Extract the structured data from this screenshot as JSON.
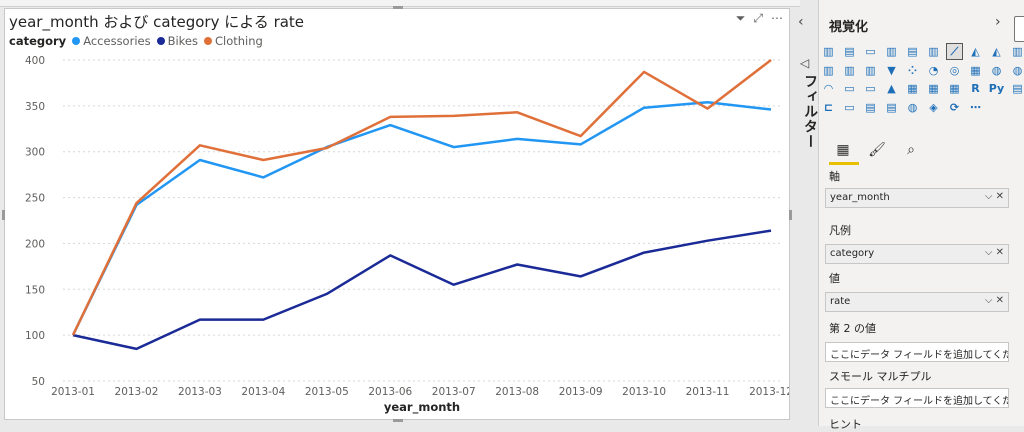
{
  "visual": {
    "title": "year_month および category による rate",
    "legend_title": "category",
    "legend_items": [
      {
        "label": "Accessories",
        "color": "#2196f3"
      },
      {
        "label": "Bikes",
        "color": "#1a2a96"
      },
      {
        "label": "Clothing",
        "color": "#e0703a"
      }
    ],
    "icons": [
      "filter-icon",
      "focus-mode-icon",
      "more-options-icon"
    ]
  },
  "chart_data": {
    "type": "line",
    "x": [
      "2013-01",
      "2013-02",
      "2013-03",
      "2013-04",
      "2013-05",
      "2013-06",
      "2013-07",
      "2013-08",
      "2013-09",
      "2013-10",
      "2013-11",
      "2013-12"
    ],
    "series": [
      {
        "name": "Accessories",
        "color": "#2196f3",
        "values": [
          100,
          242,
          291,
          272,
          305,
          329,
          305,
          314,
          308,
          348,
          354,
          346
        ]
      },
      {
        "name": "Bikes",
        "color": "#1a2a96",
        "values": [
          100,
          85,
          117,
          117,
          145,
          187,
          155,
          177,
          164,
          190,
          203,
          214
        ]
      },
      {
        "name": "Clothing",
        "color": "#e0703a",
        "values": [
          100,
          244,
          307,
          291,
          304,
          338,
          339,
          343,
          317,
          387,
          347,
          400
        ]
      }
    ],
    "xlabel": "year_month",
    "ylabel": "",
    "ylim": [
      50,
      400
    ],
    "yticks": [
      50,
      100,
      150,
      200,
      250,
      300,
      350,
      400
    ],
    "grid": true,
    "legend": "top-left"
  },
  "filters": {
    "label": "フィルター"
  },
  "pane": {
    "title": "視覚化",
    "wells": [
      {
        "label": "軸",
        "value": "year_month",
        "filled": true
      },
      {
        "label": "凡例",
        "value": "category",
        "filled": true
      },
      {
        "label": "値",
        "value": "rate",
        "filled": true
      },
      {
        "label": "第 2 の値",
        "value": "ここにデータ フィールドを追加してくだ...",
        "filled": false
      },
      {
        "label": "スモール マルチプル",
        "value": "ここにデータ フィールドを追加してくだ...",
        "filled": false
      },
      {
        "label": "ヒント",
        "value": "",
        "filled": false
      }
    ],
    "grid_icons": [
      "stacked-bar",
      "clustered-column",
      "stacked-bar-h",
      "clustered-bar",
      "stacked-100",
      "column-100",
      "line",
      "area",
      "stacked-area",
      "line-column",
      "line-stacked",
      "ribbon",
      "waterfall",
      "funnel",
      "scatter",
      "pie",
      "donut",
      "treemap",
      "map",
      "filled-map",
      "gauge",
      "card",
      "multi-card",
      "kpi",
      "slicer",
      "table",
      "matrix",
      "r-visual",
      "python-visual",
      "key-influencers",
      "decomp-tree",
      "qa",
      "narrative",
      "paginated",
      "azure-map",
      "power-apps",
      "power-automate",
      "more"
    ],
    "grid_glyphs": [
      "▥",
      "▤",
      "▭",
      "▥",
      "▤",
      "▥",
      "⟋",
      "◭",
      "◭",
      "▥",
      "▥",
      "▥",
      "▥",
      "▼",
      "⁘",
      "◔",
      "◎",
      "▦",
      "◍",
      "◍",
      "◠",
      "▭",
      "▭",
      "▲",
      "▦",
      "▦",
      "▦",
      "R",
      "Py",
      "▤",
      "⊏",
      "▭",
      "▤",
      "▤",
      "◍",
      "◈",
      "⟳",
      "⋯"
    ]
  }
}
